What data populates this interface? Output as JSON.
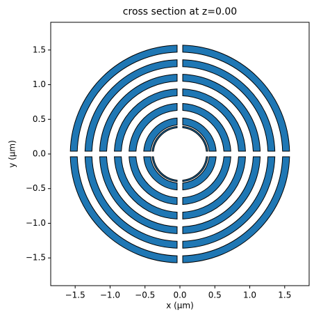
{
  "chart_data": {
    "type": "ring-sections",
    "title": "cross section at z=0.00",
    "x_label": "x (µm)",
    "y_label": "y (µm)",
    "rings": [
      {
        "inner": 1.47,
        "outer": 1.57
      },
      {
        "inner": 1.26,
        "outer": 1.36
      },
      {
        "inner": 1.05,
        "outer": 1.15
      },
      {
        "inner": 0.84,
        "outer": 0.94
      },
      {
        "inner": 0.63,
        "outer": 0.73
      },
      {
        "inner": 0.42,
        "outer": 0.52
      },
      {
        "inner": 0.38,
        "outer": 0.4
      }
    ],
    "gap": 0.08,
    "color": "#1f77b4",
    "xlim": [
      -1.85,
      1.85
    ],
    "ylim": [
      -1.9,
      1.9
    ],
    "xticks": [
      {
        "value": -1.5,
        "label": "−1.5"
      },
      {
        "value": -1.0,
        "label": "−1.0"
      },
      {
        "value": -0.5,
        "label": "−0.5"
      },
      {
        "value": 0,
        "label": "0.0"
      },
      0.5,
      {
        "value": 1.0,
        "label": "1.0"
      },
      1.5
    ],
    "yticks": [
      {
        "value": -1.5,
        "label": "−1.5"
      },
      {
        "value": -1.0,
        "label": "−1.0"
      },
      {
        "value": -0.5,
        "label": "−0.5"
      },
      {
        "value": 0,
        "label": "0.0"
      },
      0.5,
      {
        "value": 1.0,
        "label": "1.0"
      },
      1.5
    ]
  }
}
